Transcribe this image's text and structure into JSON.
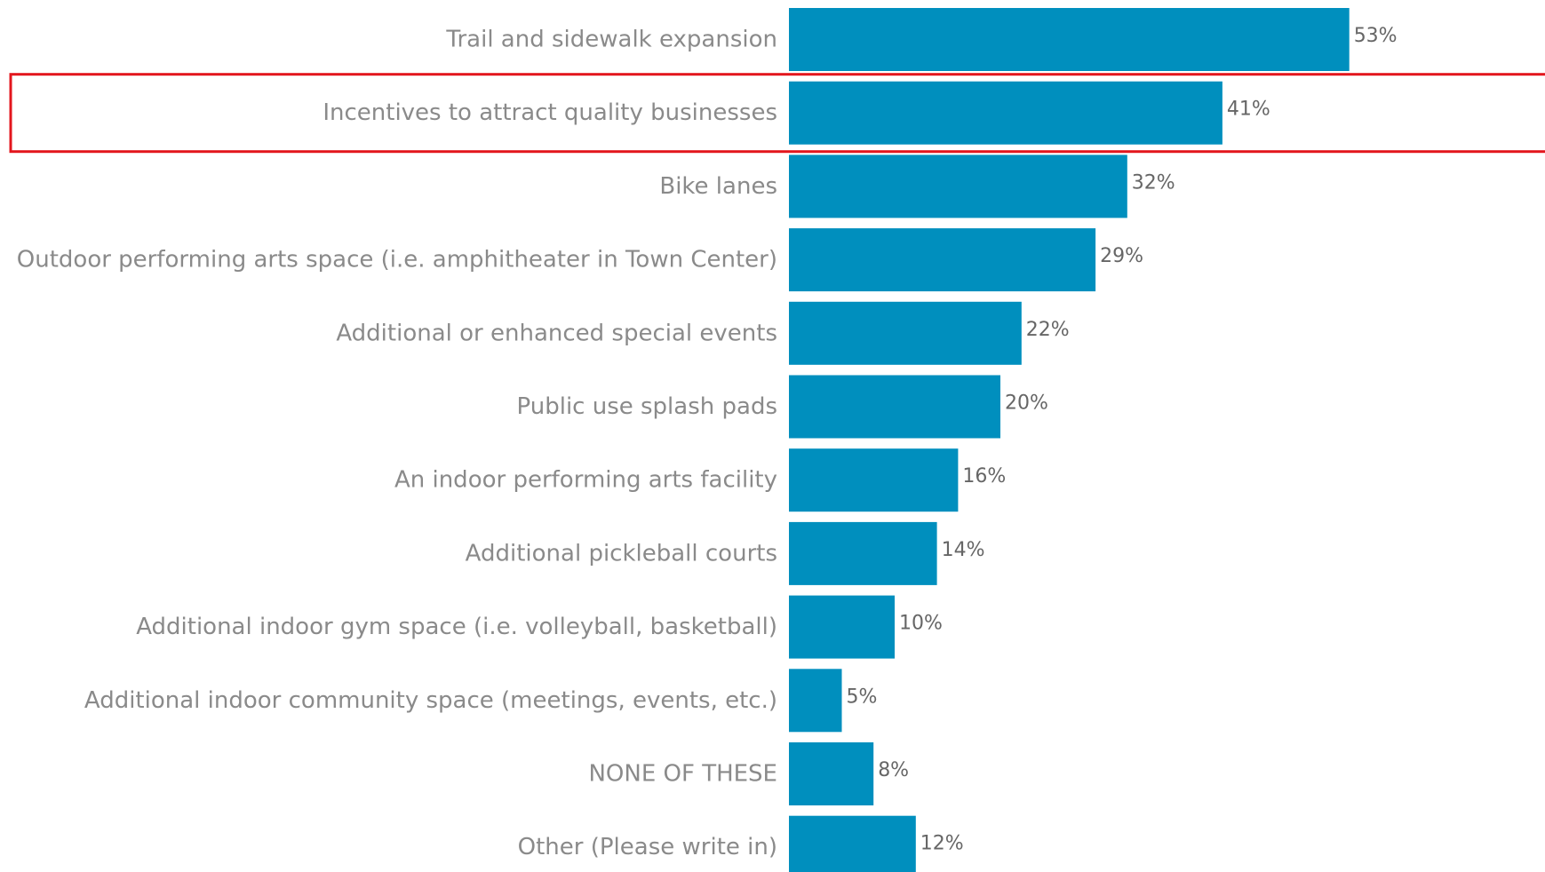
{
  "chart_data": {
    "type": "bar",
    "orientation": "horizontal",
    "categories": [
      "Trail and sidewalk expansion",
      "Incentives to attract quality businesses",
      "Bike lanes",
      "Outdoor performing arts space (i.e. amphitheater in Town Center)",
      "Additional or enhanced special events",
      "Public use splash pads",
      "An indoor performing arts facility",
      "Additional pickleball courts",
      "Additional indoor gym space (i.e. volleyball, basketball)",
      "Additional indoor community space (meetings, events, etc.)",
      "NONE OF THESE",
      "Other (Please write in)"
    ],
    "values": [
      53,
      41,
      32,
      29,
      22,
      20,
      16,
      14,
      10,
      5,
      8,
      12
    ],
    "value_labels": [
      "53%",
      "41%",
      "32%",
      "29%",
      "22%",
      "20%",
      "16%",
      "14%",
      "10%",
      "5%",
      "8%",
      "12%"
    ],
    "unit": "%",
    "highlighted_category": "Incentives to attract quality businesses",
    "grid": false,
    "legend": "none"
  },
  "colors": {
    "bar": "#008fbe",
    "highlight": "#e3161d",
    "category_text": "#8a8a8a",
    "value_text": "#666666"
  }
}
